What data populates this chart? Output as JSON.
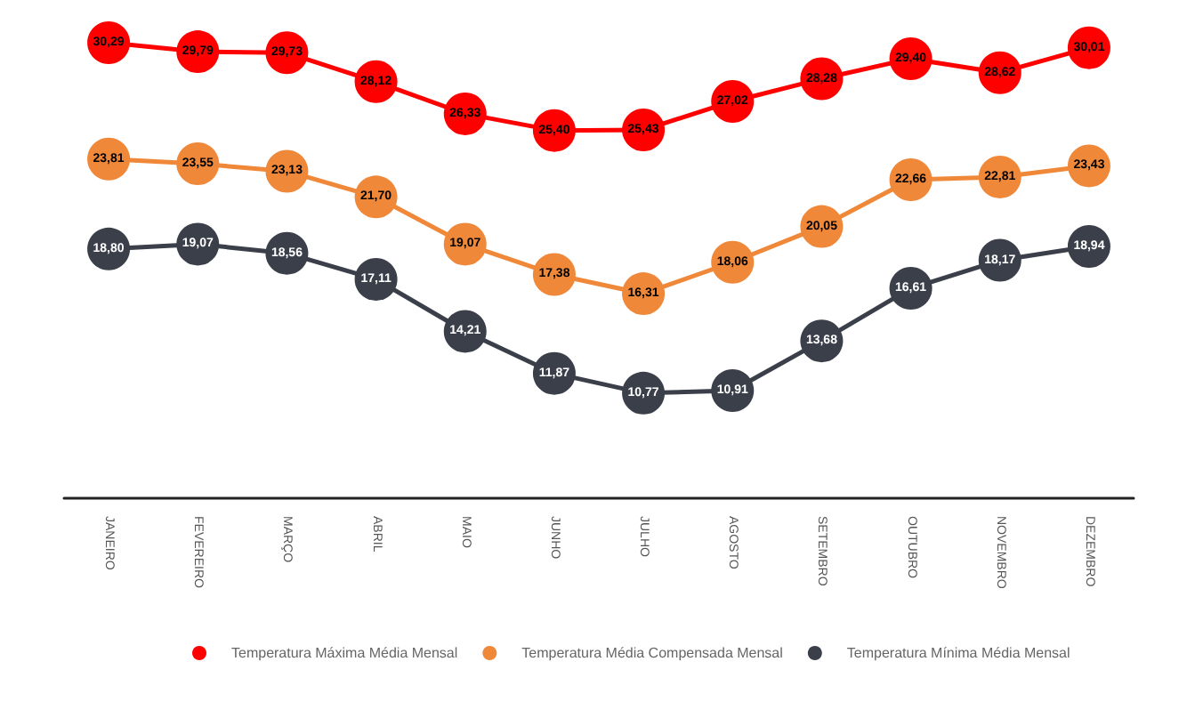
{
  "chart_data": {
    "type": "line",
    "categories": [
      "JANEIRO",
      "FEVEREIRO",
      "MARÇO",
      "ABRIL",
      "MAIO",
      "JUNHO",
      "JULHO",
      "AGOSTO",
      "SETEMBRO",
      "OUTUBRO",
      "NOVEMBRO",
      "DEZEMBRO"
    ],
    "series": [
      {
        "name": "Temperatura Máxima Média Mensal",
        "color": "#ff0000",
        "values": [
          30.29,
          29.79,
          29.73,
          28.12,
          26.33,
          25.4,
          25.43,
          27.02,
          28.28,
          29.4,
          28.62,
          30.01
        ],
        "value_labels": [
          "30,29",
          "29,79",
          "29,73",
          "28,12",
          "26,33",
          "25,40",
          "25,43",
          "27,02",
          "28,28",
          "29,40",
          "28,62",
          "30,01"
        ]
      },
      {
        "name": "Temperatura Média Compensada Mensal",
        "color": "#f0883a",
        "values": [
          23.81,
          23.55,
          23.13,
          21.7,
          19.07,
          17.38,
          16.31,
          18.06,
          20.05,
          22.66,
          22.81,
          23.43
        ],
        "value_labels": [
          "23,81",
          "23,55",
          "23,13",
          "21,70",
          "19,07",
          "17,38",
          "16,31",
          "18,06",
          "20,05",
          "22,66",
          "22,81",
          "23,43"
        ]
      },
      {
        "name": "Temperatura Mínima Média Mensal",
        "color": "#3a3f4a",
        "values": [
          18.8,
          19.07,
          18.56,
          17.11,
          14.21,
          11.87,
          10.77,
          10.91,
          13.68,
          16.61,
          18.17,
          18.94
        ],
        "value_labels": [
          "18,80",
          "19,07",
          "18,56",
          "17,11",
          "14,21",
          "11,87",
          "10,77",
          "10,91",
          "13,68",
          "16,61",
          "18,17",
          "18,94"
        ]
      }
    ],
    "marker": "circle",
    "line_style": "solid",
    "legend": "bottom",
    "grid": false
  }
}
